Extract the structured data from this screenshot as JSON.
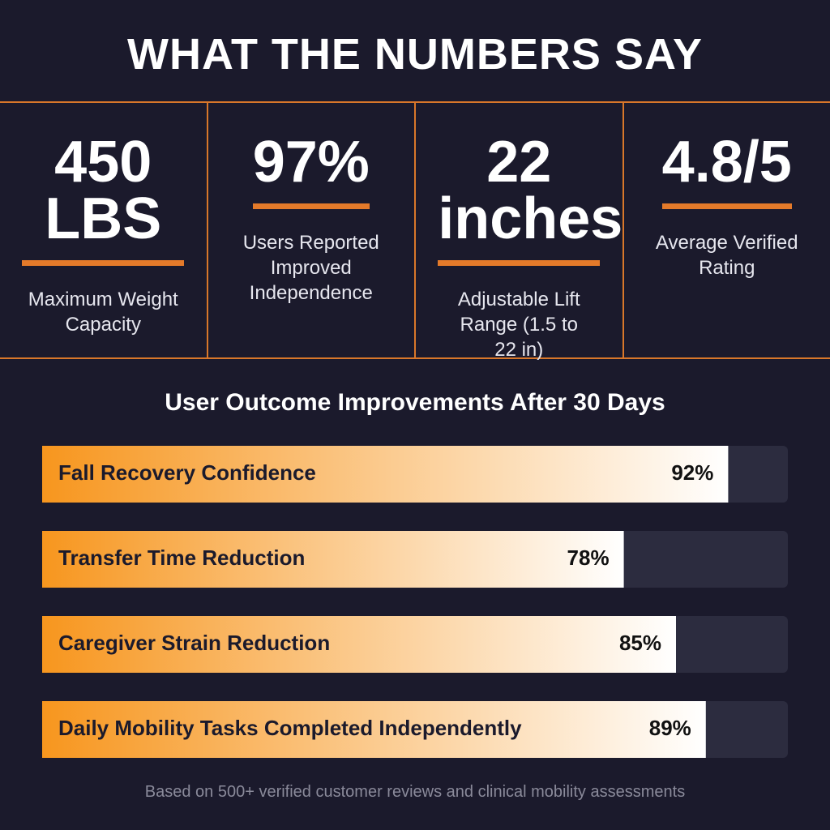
{
  "header": {
    "title": "WHAT THE NUMBERS SAY"
  },
  "stats": [
    {
      "value": "450 LBS",
      "label": "Maximum Weight Capacity"
    },
    {
      "value": "97%",
      "label": "Users Reported Improved Independence"
    },
    {
      "value": "22 inches",
      "label": "Adjustable Lift Range (1.5 to 22 in)"
    },
    {
      "value": "4.8/5",
      "label": "Average Verified Rating"
    }
  ],
  "chart_data": {
    "type": "bar",
    "orientation": "horizontal",
    "title": "User Outcome Improvements After 30 Days",
    "categories": [
      "Fall Recovery Confidence",
      "Transfer Time Reduction",
      "Caregiver Strain Reduction",
      "Daily Mobility Tasks Completed Independently"
    ],
    "values": [
      92,
      78,
      85,
      89
    ],
    "value_labels": [
      "92%",
      "78%",
      "85%",
      "89%"
    ],
    "xlim": [
      0,
      100
    ],
    "color": "#f7961e",
    "track_color": "#2c2c3f"
  },
  "footer": {
    "note": "Based on 500+ verified customer reviews and clinical mobility assessments"
  }
}
